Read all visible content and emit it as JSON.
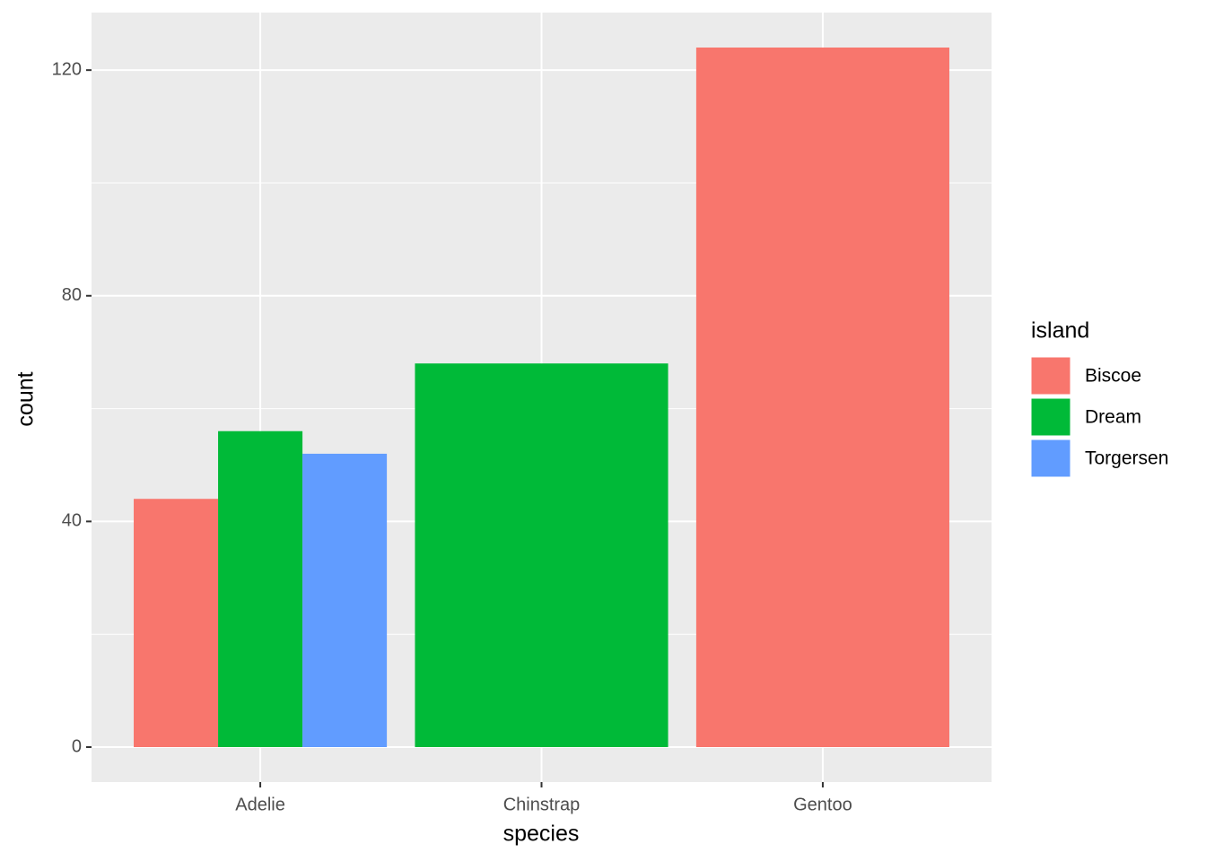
{
  "chart_data": {
    "type": "bar",
    "x_label": "species",
    "y_label": "count",
    "categories": [
      "Adelie",
      "Chinstrap",
      "Gentoo"
    ],
    "series": [
      {
        "name": "Biscoe",
        "color": "#f8766d",
        "values": [
          44,
          null,
          124
        ]
      },
      {
        "name": "Dream",
        "color": "#00ba38",
        "values": [
          56,
          68,
          null
        ]
      },
      {
        "name": "Torgersen",
        "color": "#619cff",
        "values": [
          52,
          null,
          null
        ]
      }
    ],
    "legend_title": "island",
    "legend_position": "right",
    "ylim": [
      -6.2,
      130.2
    ],
    "yticks": [
      0,
      40,
      80,
      120
    ],
    "y_minor_ticks": [
      20,
      60,
      100
    ],
    "grid": true
  }
}
